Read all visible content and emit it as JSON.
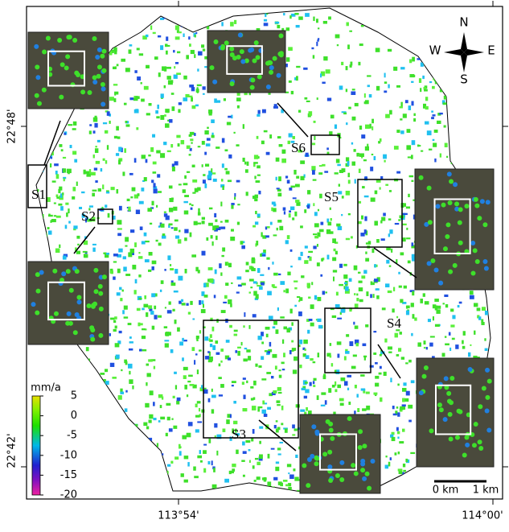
{
  "map": {
    "lat_labels": [
      "22°48'",
      "22°42'"
    ],
    "lon_labels": [
      "113°54'",
      "114°00'"
    ],
    "sites": [
      "S1",
      "S2",
      "S3",
      "S4",
      "S5",
      "S6"
    ],
    "compass": {
      "north": "N",
      "south": "S",
      "east": "E",
      "west": "W"
    },
    "colorbar": {
      "unit": "mm/a",
      "ticks": [
        5,
        0,
        -5,
        -10,
        -15,
        -20
      ]
    },
    "scale_bar": {
      "start": "0 km",
      "end": "1 km"
    }
  }
}
